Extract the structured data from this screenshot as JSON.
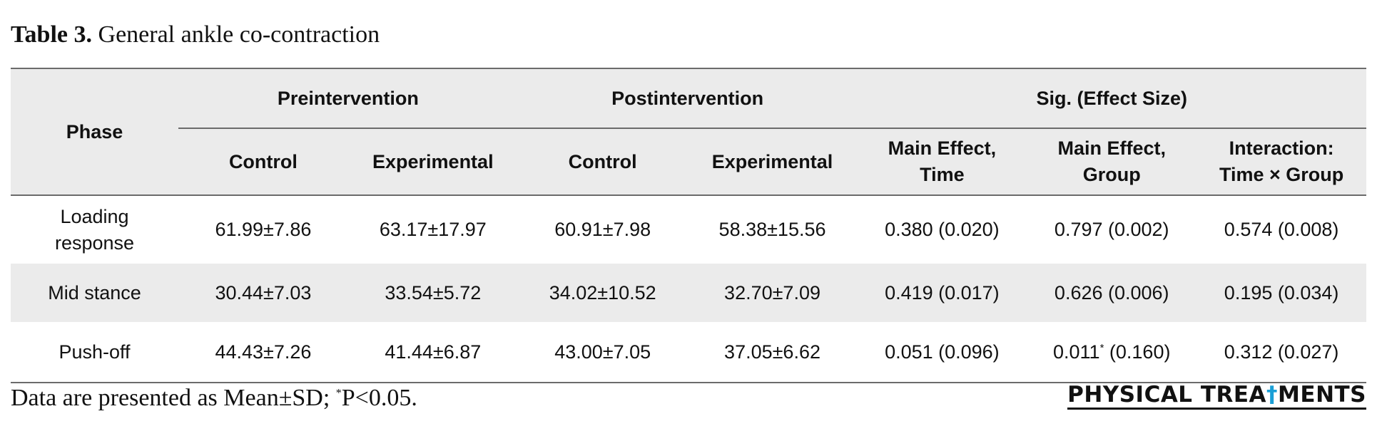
{
  "caption": {
    "label": "Table 3.",
    "title": "General ankle co-contraction"
  },
  "table": {
    "phase_header": "Phase",
    "group_headers": {
      "pre": "Preintervention",
      "post": "Postintervention",
      "sig": "Sig. (Effect Size)"
    },
    "sub_headers": {
      "pre_control": "Control",
      "pre_experimental": "Experimental",
      "post_control": "Control",
      "post_experimental": "Experimental",
      "main_time_l1": "Main Effect,",
      "main_time_l2": "Time",
      "main_group_l1": "Main Effect,",
      "main_group_l2": "Group",
      "interaction_l1": "Interaction:",
      "interaction_l2": "Time × Group"
    },
    "rows": [
      {
        "phase_l1": "Loading",
        "phase_l2": "response",
        "pre_control": "61.99±7.86",
        "pre_experimental": "63.17±17.97",
        "post_control": "60.91±7.98",
        "post_experimental": "58.38±15.56",
        "main_time": "0.380 (0.020)",
        "main_group": "0.797 (0.002)",
        "interaction": "0.574 (0.008)"
      },
      {
        "phase": "Mid stance",
        "pre_control": "30.44±7.03",
        "pre_experimental": "33.54±5.72",
        "post_control": "34.02±10.52",
        "post_experimental": "32.70±7.09",
        "main_time": "0.419 (0.017)",
        "main_group": "0.626 (0.006)",
        "interaction": "0.195 (0.034)"
      },
      {
        "phase": "Push-off",
        "pre_control": "44.43±7.26",
        "pre_experimental": "41.44±6.87",
        "post_control": "43.00±7.05",
        "post_experimental": "37.05±6.62",
        "main_time": "0.051 (0.096)",
        "main_group_value": "0.011",
        "main_group_star": "*",
        "main_group_effect": " (0.160)",
        "interaction": "0.312 (0.027)"
      }
    ]
  },
  "footnote": {
    "text_before": "Data are presented as Mean±SD; ",
    "star": "*",
    "text_after": "P<0.05."
  },
  "logo": {
    "part1": "PHYSICAL TREA",
    "accent": "†",
    "part2": "MENTS"
  }
}
